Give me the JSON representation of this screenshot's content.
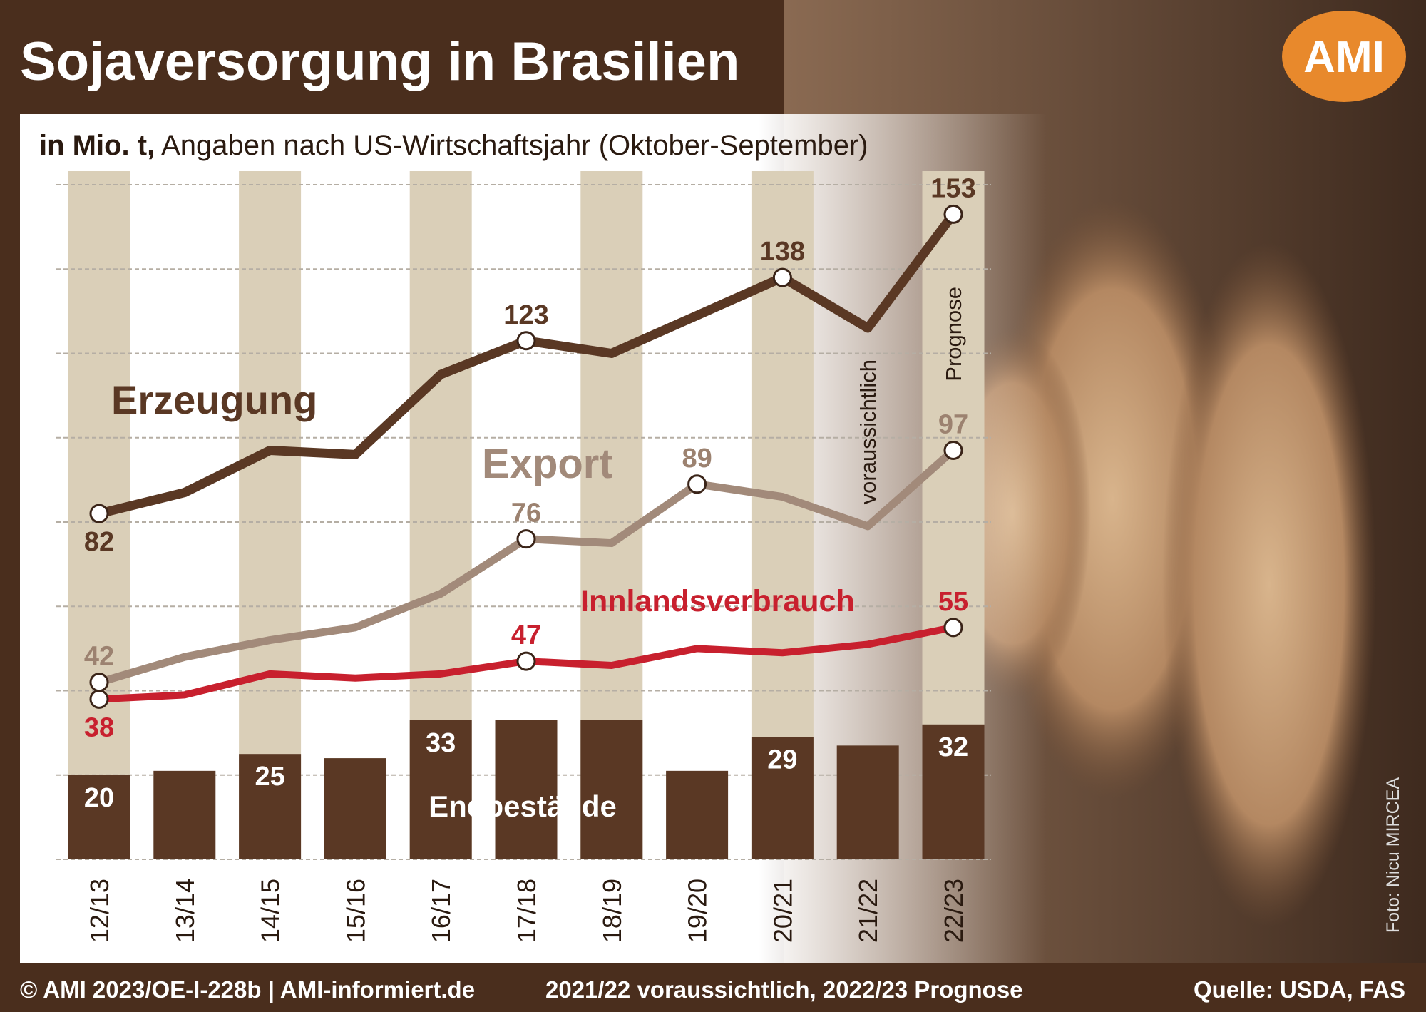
{
  "chart_data": {
    "type": "line",
    "title": "Sojaversorgung in Brasilien",
    "subtitle_bold": "in Mio. t,",
    "subtitle": "Angaben nach US-Wirtschaftsjahr (Oktober-September)",
    "logo": "AMI",
    "categories": [
      "12/13",
      "13/14",
      "14/15",
      "15/16",
      "16/17",
      "17/18",
      "18/19",
      "19/20",
      "20/21",
      "21/22",
      "22/23"
    ],
    "series": [
      {
        "name": "Endbestände",
        "kind": "bar",
        "color": "#5a3824",
        "values": [
          20,
          21,
          25,
          24,
          33,
          33,
          33,
          21,
          29,
          27,
          32
        ],
        "labeled": [
          0,
          2,
          4,
          8,
          10
        ]
      },
      {
        "name": "Innlandsverbrauch",
        "kind": "line",
        "color": "#c8202e",
        "values": [
          38,
          39,
          44,
          43,
          44,
          47,
          46,
          50,
          49,
          51,
          55
        ],
        "labeled": [
          0,
          5,
          10
        ]
      },
      {
        "name": "Export",
        "kind": "line",
        "color": "#a28a7a",
        "values": [
          42,
          48,
          52,
          55,
          63,
          76,
          75,
          89,
          86,
          79,
          97
        ],
        "labeled": [
          0,
          5,
          7,
          10
        ]
      },
      {
        "name": "Erzeugung",
        "kind": "line",
        "color": "#5a3824",
        "values": [
          82,
          87,
          97,
          96,
          115,
          123,
          120,
          129,
          138,
          126,
          153
        ],
        "labeled": [
          0,
          5,
          8,
          10
        ]
      }
    ],
    "ylim": [
      0,
      160
    ],
    "yticks": [
      0,
      20,
      40,
      60,
      80,
      100,
      120,
      140,
      160
    ],
    "grid": true,
    "annotations": [
      {
        "text": "voraussichtlich",
        "category": 9
      },
      {
        "text": "Prognose",
        "category": 10
      }
    ],
    "footer_left": "© AMI 2023/OE-I-228b | AMI-informiert.de",
    "footer_center": "2021/22 voraussichtlich, 2022/23 Prognose",
    "footer_right": "Quelle: USDA, FAS",
    "photo_credit": "Foto: Nicu MIRCEA"
  }
}
